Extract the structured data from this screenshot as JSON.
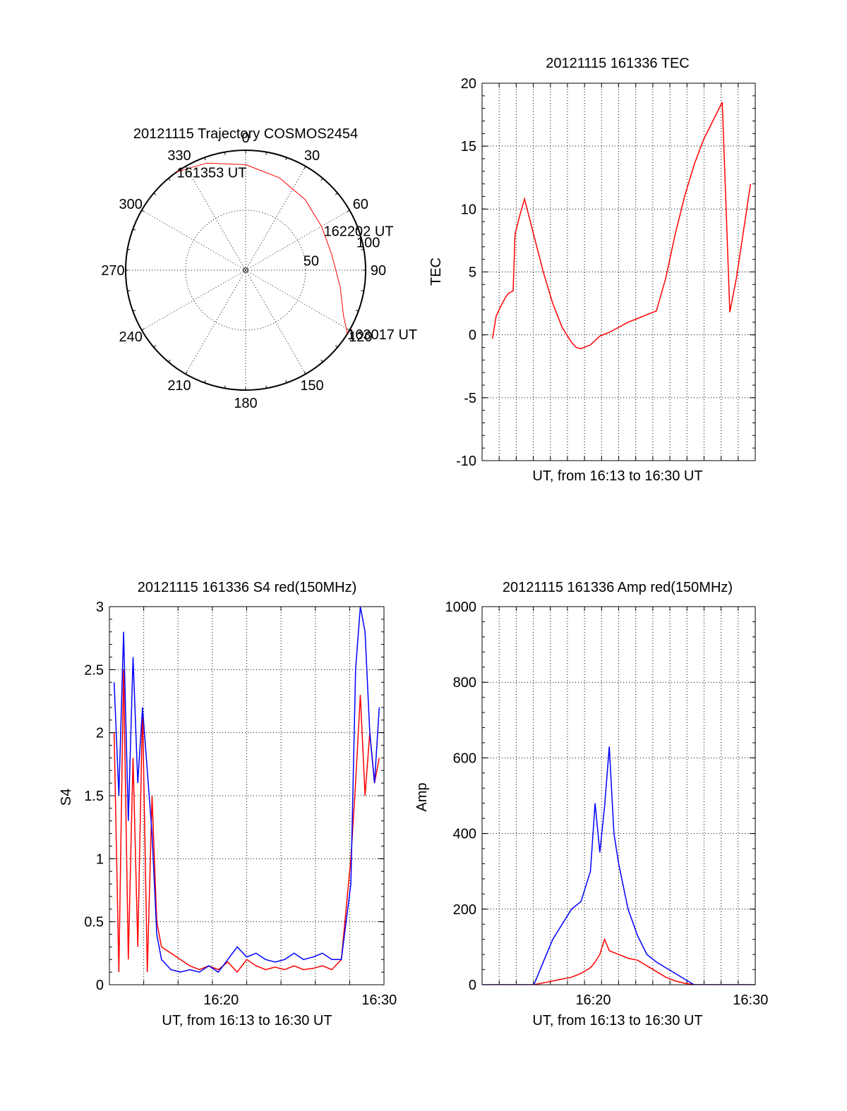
{
  "colors": {
    "red": "#ff0000",
    "blue": "#0000ff",
    "axis": "#000000",
    "background": "#ffffff"
  },
  "chart_data": [
    {
      "id": "trajectory",
      "type": "polar",
      "title": "20121115 Trajectory COSMOS2454",
      "azimuth_labels": [
        "0",
        "30",
        "60",
        "90",
        "120",
        "150",
        "180",
        "210",
        "240",
        "270",
        "300",
        "330"
      ],
      "radial_labels": [
        "50",
        "100"
      ],
      "rings": [
        50,
        100
      ],
      "grid": true,
      "series": [
        {
          "color": "red",
          "points": [
            [
              325,
              100
            ],
            [
              340,
              95
            ],
            [
              0,
              88
            ],
            [
              20,
              82
            ],
            [
              40,
              77
            ],
            [
              60,
              73
            ],
            [
              80,
              73
            ],
            [
              100,
              80
            ],
            [
              115,
              90
            ],
            [
              122,
              100
            ]
          ]
        }
      ],
      "annotations": [
        {
          "text": "161353 UT",
          "azimuth": 325,
          "radius": 100
        },
        {
          "text": "162202 UT",
          "azimuth": 63,
          "radius": 73
        },
        {
          "text": "163017 UT",
          "azimuth": 122,
          "radius": 100
        }
      ]
    },
    {
      "id": "tec",
      "type": "line",
      "title": "20121115 161336 TEC",
      "xlabel": "UT, from 16:13 to 16:30 UT",
      "ylabel": "TEC",
      "xlim": [
        16.215,
        16.505
      ],
      "ylim": [
        -10,
        20
      ],
      "yticks": [
        -10,
        -5,
        0,
        5,
        10,
        15,
        20
      ],
      "xtick_labels": [],
      "grid": true,
      "series": [
        {
          "color": "red",
          "x": [
            16.226,
            16.23,
            16.235,
            16.24,
            16.243,
            16.248,
            16.25,
            16.255,
            16.26,
            16.28,
            16.29,
            16.3,
            16.31,
            16.315,
            16.32,
            16.33,
            16.34,
            16.35,
            16.36,
            16.37,
            16.38,
            16.39,
            16.4,
            16.41,
            16.42,
            16.43,
            16.44,
            16.45,
            16.46,
            16.47,
            16.478,
            16.485,
            16.49,
            16.495,
            16.5
          ],
          "y": [
            -0.3,
            1.5,
            2.3,
            3.0,
            3.3,
            3.5,
            8.0,
            9.5,
            10.8,
            5.0,
            2.5,
            0.6,
            -0.6,
            -1.0,
            -1.1,
            -0.8,
            -0.1,
            0.2,
            0.6,
            1.0,
            1.3,
            1.6,
            1.9,
            4.5,
            8.0,
            11.0,
            13.5,
            15.5,
            17.0,
            18.5,
            1.8,
            4.5,
            7.0,
            9.5,
            12.0
          ]
        }
      ]
    },
    {
      "id": "s4",
      "type": "line",
      "title": "20121115 161336 S4 red(150MHz)",
      "xlabel": "UT, from 16:13 to 16:30 UT",
      "ylabel": "S4",
      "xlim": [
        16.215,
        16.505
      ],
      "ylim": [
        0,
        3
      ],
      "yticks": [
        0,
        0.5,
        1,
        1.5,
        2,
        2.5,
        3
      ],
      "xticks": [
        16.333,
        16.5
      ],
      "xtick_labels": [
        "16:20",
        "16:30"
      ],
      "grid": true,
      "series": [
        {
          "color": "red",
          "x": [
            16.22,
            16.225,
            16.23,
            16.235,
            16.24,
            16.245,
            16.25,
            16.255,
            16.26,
            16.265,
            16.27,
            16.28,
            16.29,
            16.3,
            16.31,
            16.32,
            16.33,
            16.34,
            16.35,
            16.36,
            16.37,
            16.38,
            16.39,
            16.4,
            16.41,
            16.42,
            16.43,
            16.44,
            16.45,
            16.46,
            16.47,
            16.475,
            16.48,
            16.485,
            16.49,
            16.495,
            16.5
          ],
          "y": [
            2.0,
            0.1,
            2.5,
            0.2,
            1.8,
            0.3,
            2.2,
            0.1,
            1.5,
            0.5,
            0.3,
            0.25,
            0.2,
            0.15,
            0.12,
            0.15,
            0.12,
            0.18,
            0.1,
            0.2,
            0.15,
            0.12,
            0.14,
            0.12,
            0.15,
            0.12,
            0.13,
            0.15,
            0.12,
            0.2,
            1.0,
            1.6,
            2.3,
            1.5,
            2.0,
            1.6,
            1.8
          ]
        },
        {
          "color": "blue",
          "x": [
            16.22,
            16.225,
            16.23,
            16.235,
            16.24,
            16.245,
            16.25,
            16.255,
            16.26,
            16.265,
            16.27,
            16.28,
            16.29,
            16.3,
            16.31,
            16.32,
            16.33,
            16.34,
            16.35,
            16.36,
            16.37,
            16.38,
            16.39,
            16.4,
            16.41,
            16.42,
            16.43,
            16.44,
            16.45,
            16.46,
            16.47,
            16.475,
            16.48,
            16.485,
            16.49,
            16.495,
            16.5
          ],
          "y": [
            2.4,
            1.5,
            2.8,
            1.3,
            2.6,
            1.6,
            2.2,
            1.7,
            1.2,
            0.4,
            0.2,
            0.12,
            0.1,
            0.12,
            0.1,
            0.15,
            0.1,
            0.2,
            0.3,
            0.22,
            0.25,
            0.2,
            0.18,
            0.2,
            0.25,
            0.2,
            0.22,
            0.25,
            0.2,
            0.2,
            0.8,
            2.5,
            3.0,
            2.8,
            2.0,
            1.6,
            2.2
          ]
        }
      ]
    },
    {
      "id": "amp",
      "type": "line",
      "title": "20121115 161336 Amp red(150MHz)",
      "xlabel": "UT, from 16:13 to 16:30 UT",
      "ylabel": "Amp",
      "xlim": [
        16.215,
        16.505
      ],
      "ylim": [
        0,
        1000
      ],
      "yticks": [
        0,
        200,
        400,
        600,
        800,
        1000
      ],
      "xticks": [
        16.333,
        16.5
      ],
      "xtick_labels": [
        "16:20",
        "16:30"
      ],
      "grid": true,
      "series": [
        {
          "color": "red",
          "x": [
            16.215,
            16.27,
            16.28,
            16.29,
            16.3,
            16.31,
            16.32,
            16.33,
            16.335,
            16.34,
            16.345,
            16.35,
            16.36,
            16.37,
            16.38,
            16.39,
            16.4,
            16.41,
            16.42,
            16.43,
            16.44,
            16.505
          ],
          "y": [
            0,
            0,
            5,
            10,
            15,
            20,
            30,
            45,
            60,
            80,
            120,
            90,
            80,
            70,
            65,
            50,
            35,
            20,
            10,
            4,
            0,
            0
          ]
        },
        {
          "color": "blue",
          "x": [
            16.215,
            16.27,
            16.28,
            16.29,
            16.3,
            16.31,
            16.32,
            16.33,
            16.335,
            16.34,
            16.345,
            16.35,
            16.355,
            16.36,
            16.37,
            16.38,
            16.39,
            16.4,
            16.41,
            16.42,
            16.43,
            16.44,
            16.505
          ],
          "y": [
            0,
            0,
            60,
            120,
            160,
            200,
            220,
            300,
            480,
            350,
            470,
            630,
            400,
            320,
            200,
            130,
            80,
            60,
            45,
            30,
            15,
            0,
            0
          ]
        }
      ]
    }
  ]
}
